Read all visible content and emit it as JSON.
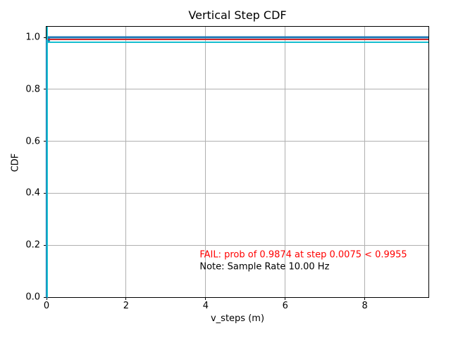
{
  "chart_data": {
    "type": "line",
    "title": "Vertical Step CDF",
    "xlabel": "v_steps (m)",
    "ylabel": "CDF",
    "xlim": [
      0,
      9.6
    ],
    "ylim": [
      0,
      1.0407
    ],
    "x_ticks": [
      0,
      2,
      4,
      6,
      8
    ],
    "x_tick_labels": [
      "0",
      "2",
      "4",
      "6",
      "8"
    ],
    "y_ticks": [
      0.0,
      0.2,
      0.4,
      0.6,
      0.8,
      1.0
    ],
    "y_tick_labels": [
      "0.0",
      "0.2",
      "0.4",
      "0.6",
      "0.8",
      "1.0"
    ],
    "grid": true,
    "grid_color": "#b0b0b0",
    "legend": "none",
    "series": [
      {
        "name": "cdf-step-line",
        "style": "step",
        "color": "#1f77b4",
        "points": [
          [
            0,
            0
          ],
          [
            0.0075,
            0.9874
          ],
          [
            0.06,
            1.0
          ],
          [
            9.6,
            1.0
          ]
        ]
      }
    ],
    "hlines": [
      {
        "name": "threshold-line",
        "y": 0.9955,
        "color": "#d62728"
      },
      {
        "name": "achieved-prob-line",
        "y": 0.9874,
        "color": "#17becf"
      }
    ],
    "vlines": [
      {
        "name": "step-location-line",
        "x": 0.0075,
        "color": "#17becf"
      }
    ],
    "annotations": [
      {
        "name": "fail-annotation",
        "text": "FAIL: prob of 0.9874 at step 0.0075 < 0.9955",
        "color": "#ff0000",
        "x": 3.85,
        "y": 0.163
      },
      {
        "name": "sample-rate-note",
        "text": "Note: Sample Rate 10.00 Hz",
        "color": "#000000",
        "x": 3.85,
        "y": 0.117
      }
    ]
  }
}
